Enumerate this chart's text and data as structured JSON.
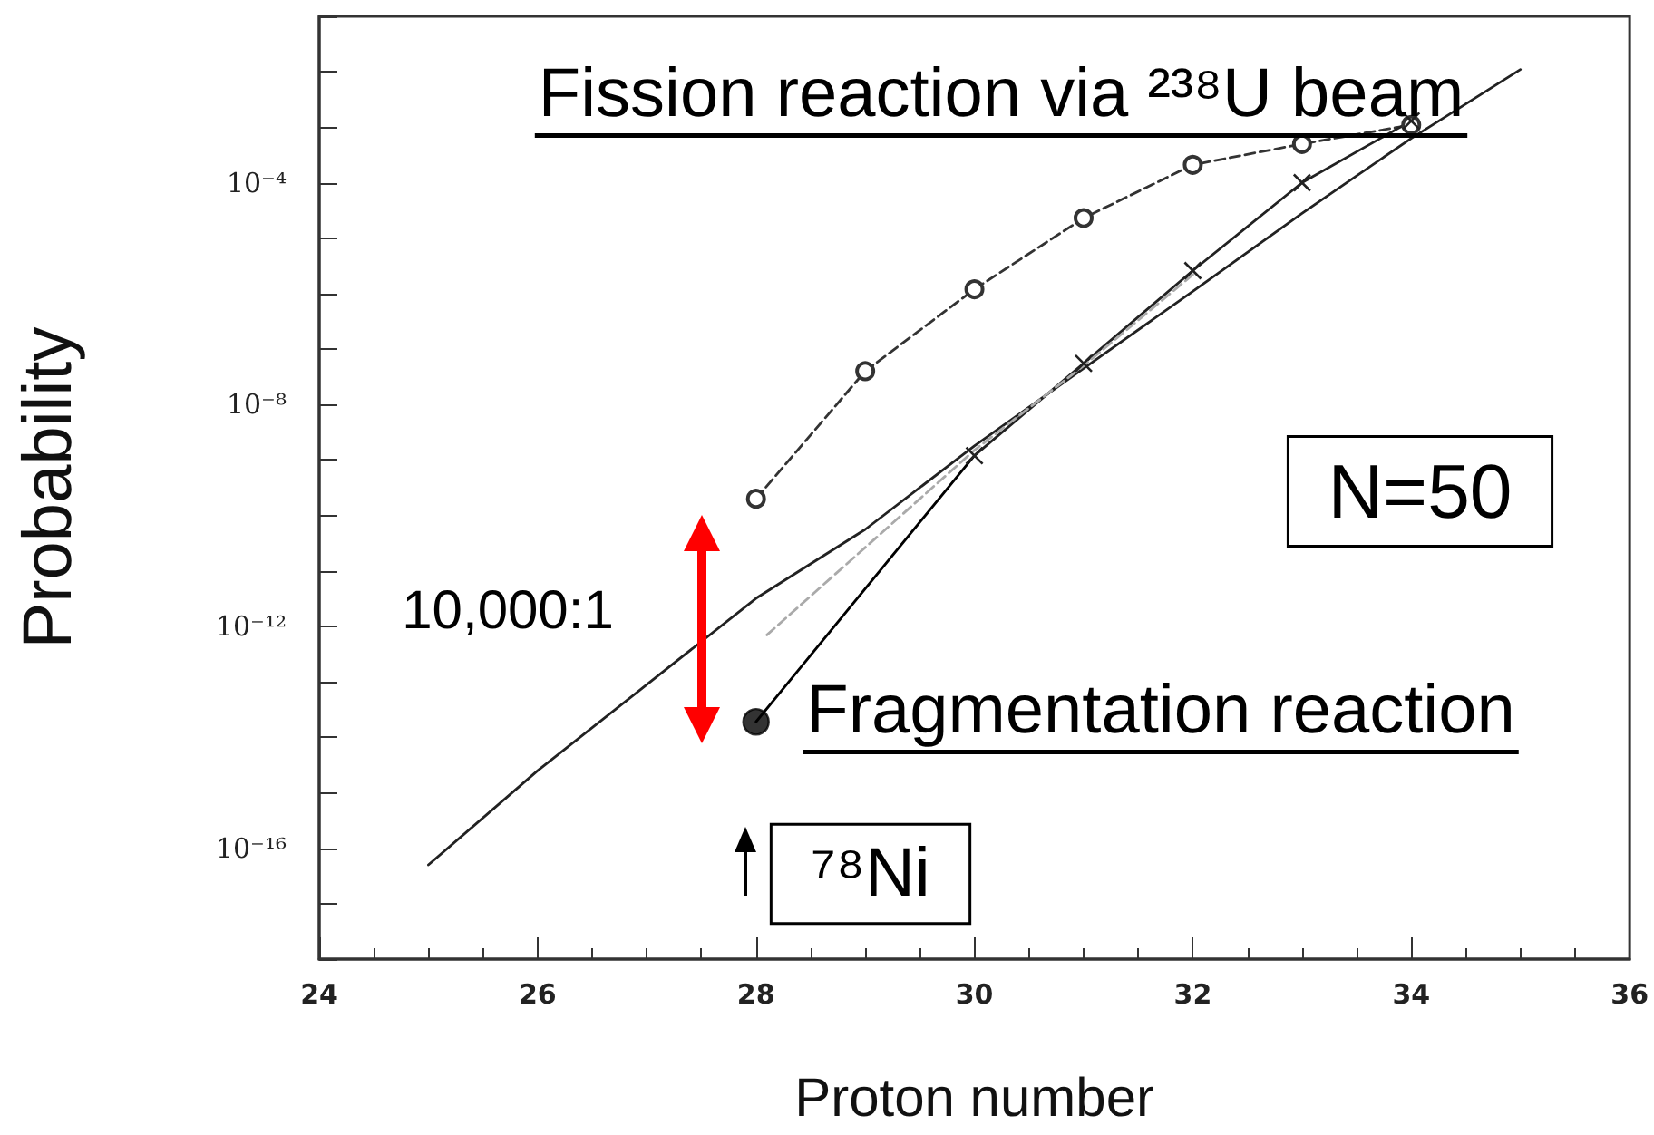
{
  "chart_data": {
    "type": "line",
    "xlabel": "Proton number",
    "ylabel": "Probability",
    "log": "y",
    "grid": false,
    "xlim": [
      24,
      36
    ],
    "xticks": [
      24,
      26,
      28,
      30,
      32,
      34,
      36
    ],
    "ylim": [
      1e-18,
      0.1
    ],
    "yticks": [
      {
        "value": 1e-18,
        "label": null
      },
      {
        "value": 1e-17,
        "label": null
      },
      {
        "value": 1e-16,
        "label": "10⁻¹⁶"
      },
      {
        "value": 1e-15,
        "label": null
      },
      {
        "value": 1e-14,
        "label": null
      },
      {
        "value": 1e-13,
        "label": null
      },
      {
        "value": 1e-12,
        "label": "10⁻¹²"
      },
      {
        "value": 1e-11,
        "label": null
      },
      {
        "value": 1e-10,
        "label": null
      },
      {
        "value": 1e-09,
        "label": null
      },
      {
        "value": 1e-08,
        "label": "10⁻⁸"
      },
      {
        "value": 1e-07,
        "label": null
      },
      {
        "value": 1e-06,
        "label": null
      },
      {
        "value": 1e-05,
        "label": null
      },
      {
        "value": 0.0001,
        "label": "10⁻⁴"
      },
      {
        "value": 0.001,
        "label": null
      },
      {
        "value": 0.01,
        "label": null
      },
      {
        "value": 0.1,
        "label": null
      }
    ],
    "series": [
      {
        "color": "#333333",
        "line_style": "dashed",
        "marker": "circle",
        "x": [
          28,
          29,
          30,
          31,
          32,
          33,
          34
        ],
        "values": [
          2e-10,
          4e-08,
          1.2e-06,
          2.3e-05,
          0.00021,
          0.0005,
          0.0011
        ]
      },
      {
        "color": "#222222",
        "line_style": "solid",
        "marker": "cross",
        "x": [
          30,
          31,
          32,
          33,
          34
        ],
        "values": [
          1.2e-09,
          5.5e-08,
          2.6e-06,
          0.0001,
          0.0013
        ]
      },
      {
        "color": "#222222",
        "line_style": "solid",
        "marker": "none",
        "x": [
          25,
          26,
          27,
          28,
          29,
          30,
          31,
          32,
          33,
          34,
          35
        ],
        "values": [
          5e-17,
          2.5e-15,
          8.9e-14,
          3.2e-12,
          5.6e-11,
          1.8e-09,
          4.5e-08,
          1.1e-06,
          2.8e-05,
          0.00063,
          0.011
        ]
      },
      {
        "color": "#aaaaaa",
        "line_style": "dashed",
        "marker": "none",
        "x": [
          28.1,
          30,
          31,
          32
        ],
        "values": [
          7e-13,
          1.5e-09,
          5e-08,
          2.2e-06
        ]
      },
      {
        "color": "#000000",
        "line_style": "solid",
        "marker": "none",
        "x": [
          28,
          30
        ],
        "values": [
          1.9e-14,
          1.2e-09
        ]
      },
      {
        "type": "scatter",
        "color": "#000000",
        "marker": "circle",
        "x": [
          28
        ],
        "values": [
          1.9e-14
        ]
      }
    ],
    "annotations": [
      "Fission reaction via ²³⁸U beam",
      "Fragmentation reaction",
      "N=50",
      "⁷⁸Ni",
      "10,000:1"
    ]
  }
}
